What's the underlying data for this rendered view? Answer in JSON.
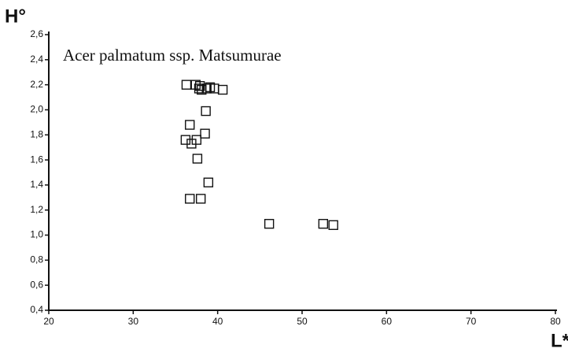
{
  "chart_data": {
    "type": "scatter",
    "title": "Acer palmatum ssp. Matsumurae",
    "x_label": "L*",
    "y_label": "H°",
    "x": [
      36.2,
      36.7,
      36.9,
      37.5,
      37.6,
      38.5,
      38.6,
      38.9,
      36.7,
      38.0,
      36.3,
      37.4,
      37.8,
      38.1,
      37.9,
      38.7,
      39.1,
      39.6,
      40.6,
      46.1,
      52.5,
      53.7
    ],
    "values": [
      1.76,
      1.88,
      1.73,
      1.76,
      1.61,
      1.81,
      1.99,
      1.42,
      1.29,
      1.29,
      2.2,
      2.2,
      2.17,
      2.16,
      2.19,
      2.17,
      2.18,
      2.17,
      2.16,
      1.09,
      1.09,
      1.08
    ],
    "color": "#111111",
    "xlim": [
      20,
      80
    ],
    "xticks": [
      20,
      30,
      40,
      50,
      60,
      70,
      80
    ],
    "ylim": [
      0.4,
      2.6
    ],
    "yticks": [
      {
        "value": 0.4,
        "label": "0,4"
      },
      {
        "value": 0.6,
        "label": "0,6"
      },
      {
        "value": 0.8,
        "label": "0,8"
      },
      {
        "value": 1.0,
        "label": "1,0"
      },
      {
        "value": 1.2,
        "label": "1,2"
      },
      {
        "value": 1.4,
        "label": "1,4"
      },
      {
        "value": 1.6,
        "label": "1,6"
      },
      {
        "value": 1.8,
        "label": "1,8"
      },
      {
        "value": 2.0,
        "label": "2,0"
      },
      {
        "value": 2.2,
        "label": "2,2"
      },
      {
        "value": 2.4,
        "label": "2,4"
      },
      {
        "value": 2.6,
        "label": "2,6"
      }
    ]
  }
}
